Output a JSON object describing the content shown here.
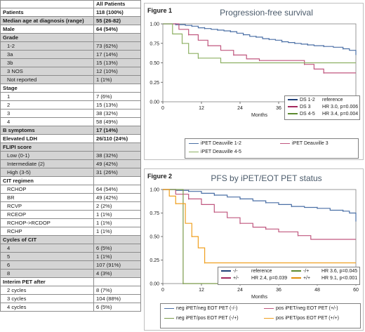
{
  "table": {
    "header": [
      "",
      "All Patients"
    ],
    "rows": [
      {
        "label": "Patients",
        "value": "118 (100%)",
        "type": "section"
      },
      {
        "label": "Median age at diagnosis (range)",
        "value": "55 (26-82)",
        "type": "section"
      },
      {
        "label": "Male",
        "value": "64 (54%)",
        "type": "section"
      },
      {
        "label": "Grade",
        "value": "",
        "type": "section"
      },
      {
        "label": "1-2",
        "value": "73 (62%)",
        "type": "sub"
      },
      {
        "label": "3a",
        "value": "17 (14%)",
        "type": "sub"
      },
      {
        "label": "3b",
        "value": "15 (13%)",
        "type": "sub"
      },
      {
        "label": "3 NOS",
        "value": "12 (10%)",
        "type": "sub"
      },
      {
        "label": "Not reported",
        "value": "1 (1%)",
        "type": "sub"
      },
      {
        "label": "Stage",
        "value": "",
        "type": "section"
      },
      {
        "label": "1",
        "value": "7 (6%)",
        "type": "sub"
      },
      {
        "label": "2",
        "value": "15 (13%)",
        "type": "sub"
      },
      {
        "label": "3",
        "value": "38 (32%)",
        "type": "sub"
      },
      {
        "label": "4",
        "value": "58 (49%)",
        "type": "sub"
      },
      {
        "label": "B symptoms",
        "value": "17 (14%)",
        "type": "section"
      },
      {
        "label": "Elevated LDH",
        "value": "26/110 (24%)",
        "type": "section"
      },
      {
        "label": "FLIPI score",
        "value": "",
        "type": "section"
      },
      {
        "label": "Low (0-1)",
        "value": "38 (32%)",
        "type": "sub"
      },
      {
        "label": "Intermediate (2)",
        "value": "49 (42%)",
        "type": "sub"
      },
      {
        "label": "High (3-5)",
        "value": "31 (26%)",
        "type": "sub"
      },
      {
        "label": "CIT regimen",
        "value": "",
        "type": "section"
      },
      {
        "label": "RCHOP",
        "value": "64 (54%)",
        "type": "sub"
      },
      {
        "label": "BR",
        "value": "49 (42%)",
        "type": "sub"
      },
      {
        "label": "RCVP",
        "value": "2 (2%)",
        "type": "sub"
      },
      {
        "label": "RCEOP",
        "value": "1 (1%)",
        "type": "sub"
      },
      {
        "label": "RCHOP->RCDOP",
        "value": "1 (1%)",
        "type": "sub"
      },
      {
        "label": "RCHP",
        "value": "1 (1%)",
        "type": "sub"
      },
      {
        "label": "Cycles of CIT",
        "value": "",
        "type": "section"
      },
      {
        "label": "4",
        "value": "6 (5%)",
        "type": "sub"
      },
      {
        "label": "5",
        "value": "1 (1%)",
        "type": "sub"
      },
      {
        "label": "6",
        "value": "107 (91%)",
        "type": "sub"
      },
      {
        "label": "8",
        "value": "4 (3%)",
        "type": "sub"
      },
      {
        "label": "Interim PET after",
        "value": "",
        "type": "section"
      },
      {
        "label": "2 cycles",
        "value": "8 (7%)",
        "type": "sub"
      },
      {
        "label": "3 cycles",
        "value": "104 (88%)",
        "type": "sub"
      },
      {
        "label": "4 cycles",
        "value": "6 (5%)",
        "type": "sub"
      }
    ]
  },
  "chart_data": [
    {
      "type": "line",
      "figure_label": "Figure 1",
      "title": "Progression-free survival",
      "xlabel": "Months",
      "xlim": [
        0,
        60
      ],
      "ylim": [
        0,
        1
      ],
      "xticks": [
        "0",
        "12",
        "24",
        "36",
        "48",
        "60"
      ],
      "yticks": [
        "0.00",
        "0.25",
        "0.50",
        "0.75",
        "1.00"
      ],
      "grid": false,
      "stats_legend": [
        {
          "code": "DS 1-2",
          "stat": "reference",
          "color": "#1f3f77"
        },
        {
          "code": "DS 3",
          "stat": "HR 3.0, p=0.006",
          "color": "#a3285e"
        },
        {
          "code": "DS 4-5",
          "stat": "HR 3.4, p=0.004",
          "color": "#5c8a2e"
        }
      ],
      "series": [
        {
          "name": "iPET Deauville 1-2",
          "color": "#4a6fa5",
          "points": [
            [
              0,
              1
            ],
            [
              2,
              1
            ],
            [
              4,
              0.99
            ],
            [
              7,
              0.98
            ],
            [
              9,
              0.97
            ],
            [
              11,
              0.95
            ],
            [
              13,
              0.94
            ],
            [
              15,
              0.93
            ],
            [
              17,
              0.92
            ],
            [
              19,
              0.91
            ],
            [
              21,
              0.9
            ],
            [
              23,
              0.88
            ],
            [
              25,
              0.86
            ],
            [
              27,
              0.84
            ],
            [
              29,
              0.83
            ],
            [
              31,
              0.81
            ],
            [
              33,
              0.8
            ],
            [
              35,
              0.79
            ],
            [
              37,
              0.77
            ],
            [
              39,
              0.76
            ],
            [
              41,
              0.75
            ],
            [
              43,
              0.74
            ],
            [
              45,
              0.73
            ],
            [
              47,
              0.72
            ],
            [
              50,
              0.71
            ],
            [
              53,
              0.7
            ],
            [
              56,
              0.68
            ],
            [
              58,
              0.66
            ],
            [
              60,
              0.6
            ]
          ]
        },
        {
          "name": "iPET Deauville 3",
          "color": "#c0577f",
          "points": [
            [
              0,
              1
            ],
            [
              5,
              0.93
            ],
            [
              8,
              0.86
            ],
            [
              11,
              0.79
            ],
            [
              14,
              0.72
            ],
            [
              18,
              0.66
            ],
            [
              22,
              0.6
            ],
            [
              26,
              0.55
            ],
            [
              30,
              0.53
            ],
            [
              40,
              0.53
            ],
            [
              44,
              0.48
            ],
            [
              47,
              0.42
            ],
            [
              50,
              0.37
            ],
            [
              60,
              0.37
            ]
          ]
        },
        {
          "name": "iPET Deauville 4-5",
          "color": "#8db063",
          "points": [
            [
              0,
              1
            ],
            [
              3,
              0.87
            ],
            [
              6,
              0.75
            ],
            [
              8,
              0.62
            ],
            [
              11,
              0.56
            ],
            [
              18,
              0.5
            ],
            [
              60,
              0.5
            ]
          ]
        }
      ]
    },
    {
      "type": "line",
      "figure_label": "Figure 2",
      "title": "PFS by iPET/EOT PET status",
      "xlabel": "Months",
      "xlim": [
        0,
        60
      ],
      "ylim": [
        0,
        1
      ],
      "xticks": [
        "0",
        "12",
        "24",
        "36",
        "48",
        "60"
      ],
      "yticks": [
        "0.00",
        "0.25",
        "0.50",
        "0.75",
        "1.00"
      ],
      "grid": false,
      "stats_legend": [
        {
          "code": "-/-",
          "stat": "reference",
          "color": "#1f3f77"
        },
        {
          "code": "-/+",
          "stat": "HR 3.6, p=0.045",
          "color": "#5c8a2e"
        },
        {
          "code": "+/-",
          "stat": "HR 2.4, p=0.039",
          "color": "#a3285e"
        },
        {
          "code": "+/+",
          "stat": "HR 9.1, p<0.001",
          "color": "#e08e0b"
        }
      ],
      "series": [
        {
          "name": "neg iPET/neg EOT PET (-/-)",
          "color": "#4a6fa5",
          "points": [
            [
              0,
              1
            ],
            [
              4,
              0.99
            ],
            [
              8,
              0.98
            ],
            [
              12,
              0.96
            ],
            [
              16,
              0.94
            ],
            [
              20,
              0.92
            ],
            [
              24,
              0.9
            ],
            [
              28,
              0.88
            ],
            [
              32,
              0.86
            ],
            [
              36,
              0.84
            ],
            [
              40,
              0.82
            ],
            [
              44,
              0.81
            ],
            [
              48,
              0.8
            ],
            [
              52,
              0.78
            ],
            [
              56,
              0.77
            ],
            [
              58,
              0.75
            ],
            [
              60,
              0.66
            ]
          ]
        },
        {
          "name": "pos iPET/neg EOT PET (+/-)",
          "color": "#c0577f",
          "points": [
            [
              0,
              1
            ],
            [
              4,
              0.95
            ],
            [
              8,
              0.9
            ],
            [
              12,
              0.84
            ],
            [
              16,
              0.76
            ],
            [
              20,
              0.7
            ],
            [
              24,
              0.64
            ],
            [
              28,
              0.6
            ],
            [
              32,
              0.58
            ],
            [
              36,
              0.55
            ],
            [
              42,
              0.51
            ],
            [
              46,
              0.47
            ],
            [
              60,
              0.47
            ]
          ]
        },
        {
          "name": "neg iPET/pos EOT PET (-/+)",
          "color": "#7a9a4a",
          "points": [
            [
              0,
              1
            ],
            [
              6,
              1
            ],
            [
              6.3,
              0
            ],
            [
              60,
              0
            ]
          ]
        },
        {
          "name": "pos iPET/pos EOT PET (+/+)",
          "color": "#f0a020",
          "points": [
            [
              0,
              1
            ],
            [
              2,
              0.93
            ],
            [
              4,
              0.85
            ],
            [
              7,
              0.64
            ],
            [
              9,
              0.5
            ],
            [
              11,
              0.38
            ],
            [
              13,
              0.22
            ],
            [
              60,
              0.22
            ]
          ]
        }
      ]
    }
  ]
}
